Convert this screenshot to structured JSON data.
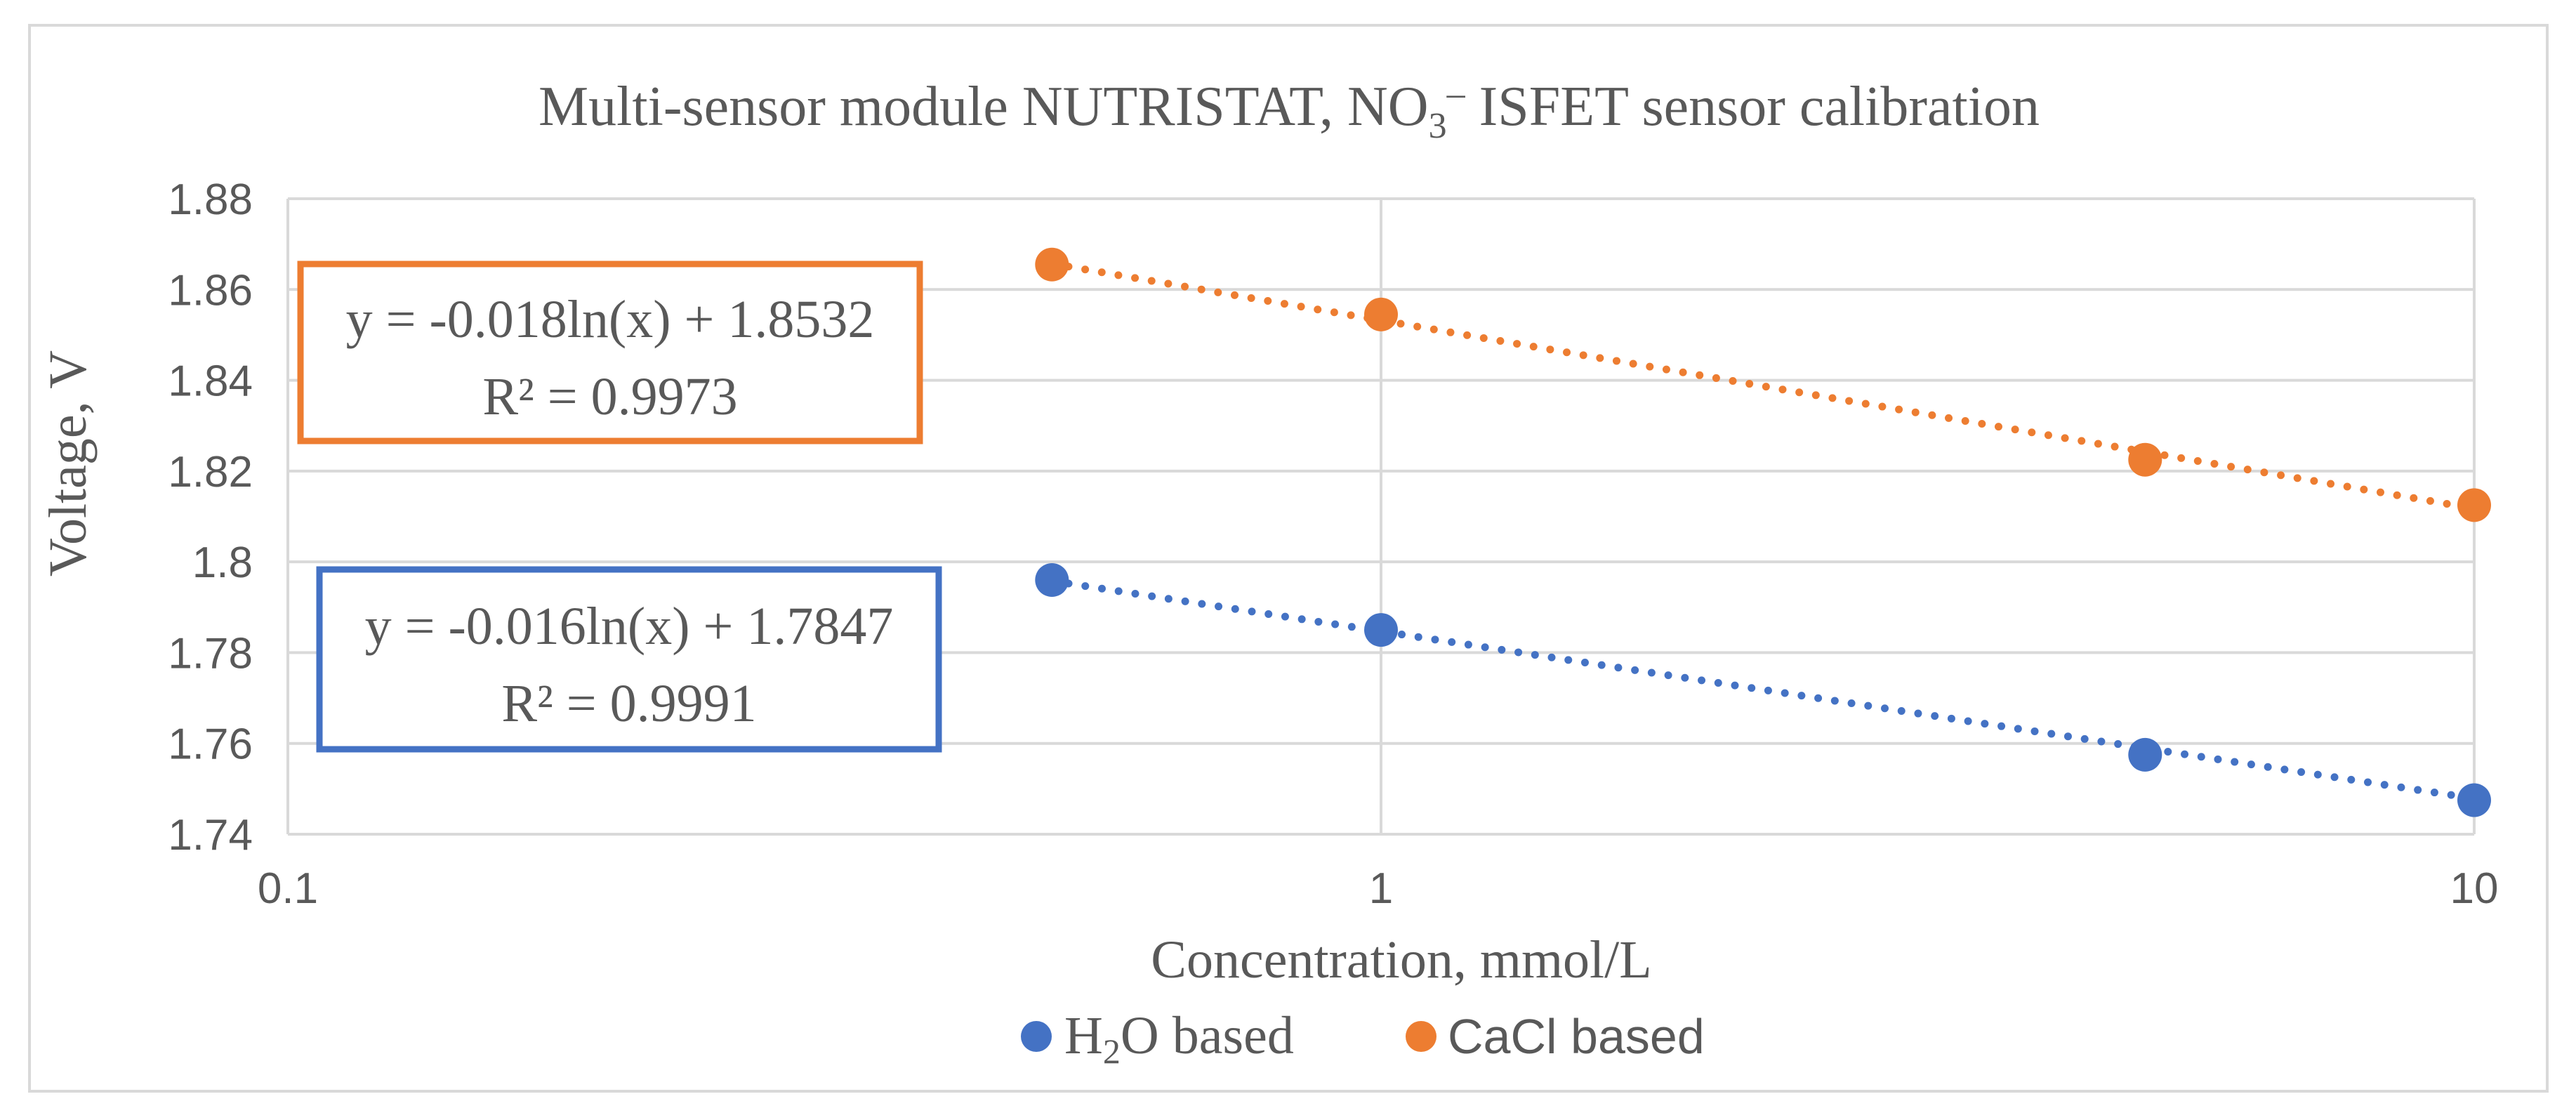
{
  "colors": {
    "blue": "#4472C4",
    "orange": "#ED7D31",
    "grid": "#D9D9D9",
    "frame": "#D9D9D9",
    "text": "#595959"
  },
  "chart_data": {
    "type": "scatter",
    "title": {
      "prefix": "Multi-sensor module NUTRISTAT, NO",
      "sub": "3",
      "sup": "–",
      "suffix": " ISFET sensor calibration"
    },
    "xlabel": "Concentration, mmol/L",
    "ylabel": "Voltage, V",
    "x_scale": "log",
    "xlim": [
      0.1,
      10
    ],
    "ylim": [
      1.74,
      1.88
    ],
    "x_ticks": [
      0.1,
      1,
      10
    ],
    "x_tick_labels": [
      "0.1",
      "1",
      "10"
    ],
    "y_ticks": [
      1.74,
      1.76,
      1.78,
      1.8,
      1.82,
      1.84,
      1.86,
      1.88
    ],
    "y_tick_labels": [
      "1.74",
      "1.76",
      "1.78",
      "1.8",
      "1.82",
      "1.84",
      "1.86",
      "1.88"
    ],
    "grid": true,
    "legend_position": "bottom",
    "series": [
      {
        "name": "H2O based",
        "legend_prefix": "H",
        "legend_sub": "2",
        "legend_suffix": "O based",
        "color": "#4472C4",
        "x": [
          0.5,
          1,
          5,
          10
        ],
        "y": [
          1.796,
          1.785,
          1.7575,
          1.7475
        ],
        "trendline": {
          "type": "log",
          "a": -0.016,
          "b": 1.7847
        },
        "equation": "y = -0.016ln(x) + 1.7847",
        "r_squared": "R² = 0.9991"
      },
      {
        "name": "CaCl based",
        "legend_label": "CaCl based",
        "color": "#ED7D31",
        "x": [
          0.5,
          1,
          5,
          10
        ],
        "y": [
          1.8655,
          1.8545,
          1.8225,
          1.8125
        ],
        "trendline": {
          "type": "log",
          "a": -0.018,
          "b": 1.8532
        },
        "equation": "y = -0.018ln(x) + 1.8532",
        "r_squared": "R² = 0.9973"
      }
    ]
  }
}
